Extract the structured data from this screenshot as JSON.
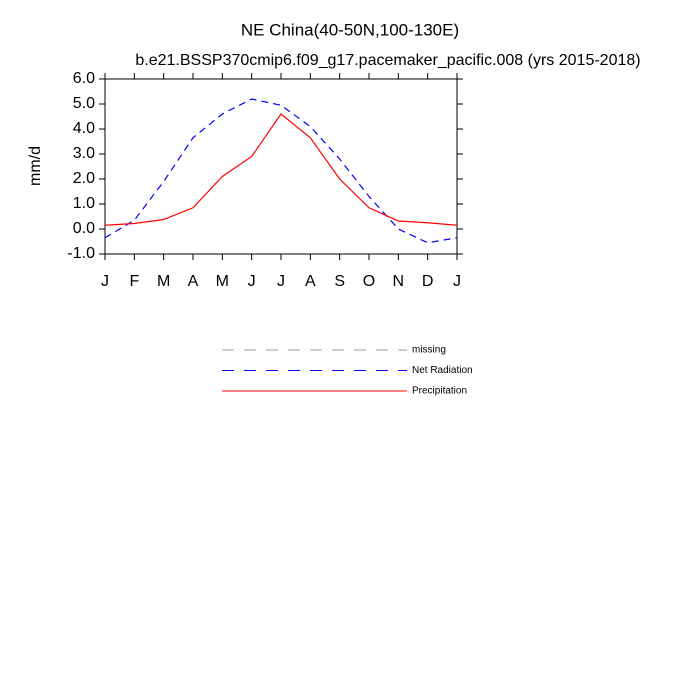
{
  "chart_data": {
    "type": "line",
    "title": "NE China(40-50N,100-130E)",
    "subtitle": "b.e21.BSSP370cmip6.f09_g17.pacemaker_pacific.008 (yrs 2015-2018)",
    "y_label": "mm/d",
    "categories": [
      "J",
      "F",
      "M",
      "A",
      "M",
      "J",
      "J",
      "A",
      "S",
      "O",
      "N",
      "D",
      "J"
    ],
    "series": [
      {
        "name": "missing",
        "color": "#999999",
        "dash": true,
        "values": [
          null,
          null,
          null,
          null,
          null,
          null,
          null,
          null,
          null,
          null,
          null,
          null,
          null
        ]
      },
      {
        "name": "Net Radiation",
        "color": "#0000ff",
        "dash": true,
        "values": [
          -0.35,
          0.35,
          1.9,
          3.65,
          4.6,
          5.2,
          4.95,
          4.1,
          2.8,
          1.3,
          0.0,
          -0.55,
          -0.35
        ]
      },
      {
        "name": "Precipitation",
        "color": "#ff0000",
        "dash": false,
        "values": [
          0.15,
          0.22,
          0.38,
          0.85,
          2.1,
          2.9,
          4.6,
          3.65,
          2.0,
          0.85,
          0.32,
          0.25,
          0.15
        ]
      }
    ],
    "ylim": [
      -1,
      6
    ],
    "yticks": [
      {
        "value": 6,
        "label": "6.0"
      },
      {
        "value": 5,
        "label": "5.0"
      },
      {
        "value": 4,
        "label": "4.0"
      },
      {
        "value": 3,
        "label": "3.0"
      },
      {
        "value": 2,
        "label": "2.0"
      },
      {
        "value": 1,
        "label": "1.0"
      },
      {
        "value": 0,
        "label": "0.0"
      },
      {
        "value": -1,
        "label": "-1.0"
      }
    ],
    "grid": false
  }
}
